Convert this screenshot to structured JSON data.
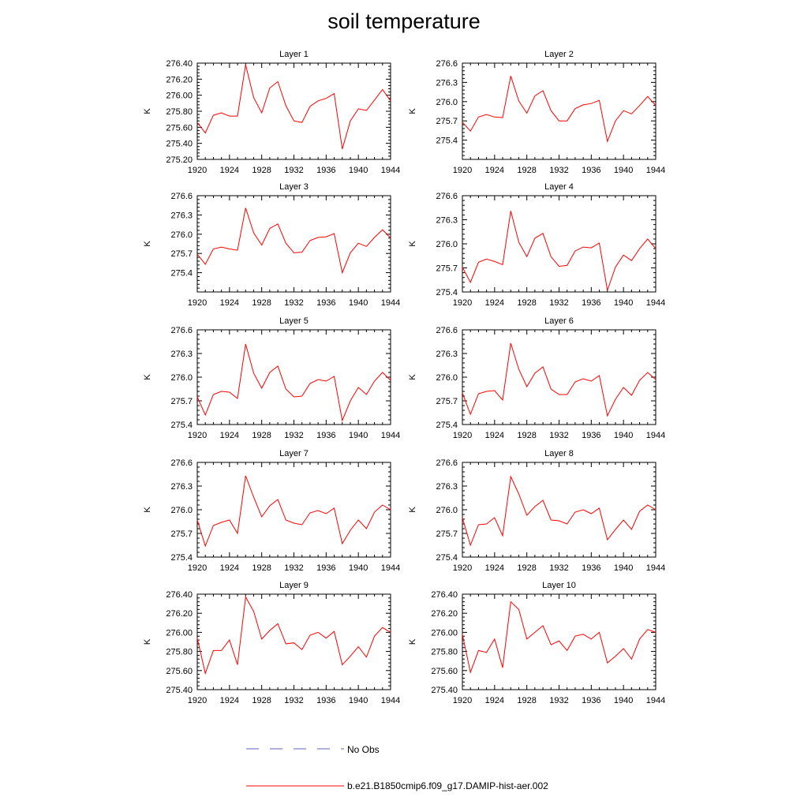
{
  "page": {
    "title": "soil temperature"
  },
  "legend": {
    "items": [
      {
        "label": "No Obs",
        "color": "#6060c0",
        "dash": "dashed"
      },
      {
        "label": "b.e21.B1850cmip6.f09_g17.DAMIP-hist-aer.002",
        "color": "#ff0000",
        "dash": "solid"
      }
    ]
  },
  "chart_data": [
    {
      "type": "line",
      "title": "Layer 1",
      "ylabel": "K",
      "xlim": [
        1920,
        1944
      ],
      "xticks": [
        "1920",
        "1924",
        "1928",
        "1932",
        "1936",
        "1940",
        "1944"
      ],
      "ylim": [
        275.2,
        276.4
      ],
      "yticks": [
        "275.20",
        "275.40",
        "275.60",
        "275.80",
        "276.00",
        "276.20",
        "276.40"
      ],
      "x": [
        1920,
        1921,
        1922,
        1923,
        1924,
        1925,
        1926,
        1927,
        1928,
        1929,
        1930,
        1931,
        1932,
        1933,
        1934,
        1935,
        1936,
        1937,
        1938,
        1939,
        1940,
        1941,
        1942,
        1943,
        1944
      ],
      "series": [
        {
          "color": "#ff0000",
          "values": [
            275.66,
            275.53,
            275.75,
            275.78,
            275.74,
            275.74,
            276.38,
            275.97,
            275.78,
            276.09,
            276.17,
            275.87,
            275.68,
            275.66,
            275.86,
            275.93,
            275.96,
            276.02,
            275.33,
            275.68,
            275.83,
            275.81,
            275.94,
            276.07,
            275.93
          ]
        }
      ]
    },
    {
      "type": "line",
      "title": "Layer 2",
      "ylabel": "K",
      "xlim": [
        1920,
        1944
      ],
      "xticks": [
        "1920",
        "1924",
        "1928",
        "1932",
        "1936",
        "1940",
        "1944"
      ],
      "ylim": [
        275.1,
        276.6
      ],
      "yticks": [
        "275.4",
        "275.7",
        "276.0",
        "276.3",
        "276.6"
      ],
      "x": [
        1920,
        1921,
        1922,
        1923,
        1924,
        1925,
        1926,
        1927,
        1928,
        1929,
        1930,
        1931,
        1932,
        1933,
        1934,
        1935,
        1936,
        1937,
        1938,
        1939,
        1940,
        1941,
        1942,
        1943,
        1944
      ],
      "series": [
        {
          "color": "#ff0000",
          "values": [
            275.68,
            275.54,
            275.76,
            275.8,
            275.76,
            275.75,
            276.4,
            276.01,
            275.82,
            276.09,
            276.17,
            275.86,
            275.7,
            275.7,
            275.89,
            275.95,
            275.97,
            276.02,
            275.38,
            275.7,
            275.86,
            275.81,
            275.94,
            276.08,
            275.94
          ]
        }
      ]
    },
    {
      "type": "line",
      "title": "Layer 3",
      "ylabel": "K",
      "xlim": [
        1920,
        1944
      ],
      "xticks": [
        "1920",
        "1924",
        "1928",
        "1932",
        "1936",
        "1940",
        "1944"
      ],
      "ylim": [
        275.1,
        276.6
      ],
      "yticks": [
        "275.4",
        "275.7",
        "276.0",
        "276.3",
        "276.6"
      ],
      "x": [
        1920,
        1921,
        1922,
        1923,
        1924,
        1925,
        1926,
        1927,
        1928,
        1929,
        1930,
        1931,
        1932,
        1933,
        1934,
        1935,
        1936,
        1937,
        1938,
        1939,
        1940,
        1941,
        1942,
        1943,
        1944
      ],
      "series": [
        {
          "color": "#ff0000",
          "values": [
            275.69,
            275.53,
            275.77,
            275.8,
            275.77,
            275.75,
            276.41,
            276.02,
            275.83,
            276.09,
            276.16,
            275.86,
            275.71,
            275.72,
            275.9,
            275.95,
            275.96,
            276.01,
            275.4,
            275.71,
            275.86,
            275.81,
            275.95,
            276.07,
            275.94
          ]
        }
      ]
    },
    {
      "type": "line",
      "title": "Layer 4",
      "ylabel": "K",
      "xlim": [
        1920,
        1944
      ],
      "xticks": [
        "1920",
        "1924",
        "1928",
        "1932",
        "1936",
        "1940",
        "1944"
      ],
      "ylim": [
        275.4,
        276.6
      ],
      "yticks": [
        "275.4",
        "275.7",
        "276.0",
        "276.3",
        "276.6"
      ],
      "x": [
        1920,
        1921,
        1922,
        1923,
        1924,
        1925,
        1926,
        1927,
        1928,
        1929,
        1930,
        1931,
        1932,
        1933,
        1934,
        1935,
        1936,
        1937,
        1938,
        1939,
        1940,
        1941,
        1942,
        1943,
        1944
      ],
      "series": [
        {
          "color": "#ff0000",
          "values": [
            275.71,
            275.52,
            275.77,
            275.81,
            275.78,
            275.74,
            276.41,
            276.02,
            275.84,
            276.07,
            276.13,
            275.84,
            275.72,
            275.73,
            275.91,
            275.96,
            275.95,
            276.01,
            275.42,
            275.71,
            275.86,
            275.79,
            275.94,
            276.06,
            275.94
          ]
        }
      ]
    },
    {
      "type": "line",
      "title": "Layer 5",
      "ylabel": "K",
      "xlim": [
        1920,
        1944
      ],
      "xticks": [
        "1920",
        "1924",
        "1928",
        "1932",
        "1936",
        "1940",
        "1944"
      ],
      "ylim": [
        275.4,
        276.6
      ],
      "yticks": [
        "275.4",
        "275.7",
        "276.0",
        "276.3",
        "276.6"
      ],
      "x": [
        1920,
        1921,
        1922,
        1923,
        1924,
        1925,
        1926,
        1927,
        1928,
        1929,
        1930,
        1931,
        1932,
        1933,
        1934,
        1935,
        1936,
        1937,
        1938,
        1939,
        1940,
        1941,
        1942,
        1943,
        1944
      ],
      "series": [
        {
          "color": "#ff0000",
          "values": [
            275.75,
            275.52,
            275.78,
            275.82,
            275.81,
            275.73,
            276.42,
            276.05,
            275.86,
            276.06,
            276.14,
            275.85,
            275.75,
            275.76,
            275.92,
            275.97,
            275.95,
            276.01,
            275.45,
            275.7,
            275.87,
            275.78,
            275.95,
            276.06,
            275.96
          ]
        }
      ]
    },
    {
      "type": "line",
      "title": "Layer 6",
      "ylabel": "K",
      "xlim": [
        1920,
        1944
      ],
      "xticks": [
        "1920",
        "1924",
        "1928",
        "1932",
        "1936",
        "1940",
        "1944"
      ],
      "ylim": [
        275.4,
        276.6
      ],
      "yticks": [
        "275.4",
        "275.7",
        "276.0",
        "276.3",
        "276.6"
      ],
      "x": [
        1920,
        1921,
        1922,
        1923,
        1924,
        1925,
        1926,
        1927,
        1928,
        1929,
        1930,
        1931,
        1932,
        1933,
        1934,
        1935,
        1936,
        1937,
        1938,
        1939,
        1940,
        1941,
        1942,
        1943,
        1944
      ],
      "series": [
        {
          "color": "#ff0000",
          "values": [
            275.8,
            275.53,
            275.79,
            275.82,
            275.83,
            275.71,
            276.43,
            276.1,
            275.88,
            276.05,
            276.13,
            275.85,
            275.78,
            275.78,
            275.94,
            275.98,
            275.95,
            276.02,
            275.51,
            275.72,
            275.87,
            275.77,
            275.96,
            276.06,
            275.97
          ]
        }
      ]
    },
    {
      "type": "line",
      "title": "Layer 7",
      "ylabel": "K",
      "xlim": [
        1920,
        1944
      ],
      "xticks": [
        "1920",
        "1924",
        "1928",
        "1932",
        "1936",
        "1940",
        "1944"
      ],
      "ylim": [
        275.4,
        276.6
      ],
      "yticks": [
        "275.4",
        "275.7",
        "276.0",
        "276.3",
        "276.6"
      ],
      "x": [
        1920,
        1921,
        1922,
        1923,
        1924,
        1925,
        1926,
        1927,
        1928,
        1929,
        1930,
        1931,
        1932,
        1933,
        1934,
        1935,
        1936,
        1937,
        1938,
        1939,
        1940,
        1941,
        1942,
        1943,
        1944
      ],
      "series": [
        {
          "color": "#ff0000",
          "values": [
            275.87,
            275.54,
            275.8,
            275.84,
            275.87,
            275.7,
            276.43,
            276.16,
            275.91,
            276.05,
            276.13,
            275.87,
            275.83,
            275.81,
            275.96,
            275.99,
            275.95,
            276.02,
            275.57,
            275.74,
            275.87,
            275.76,
            275.97,
            276.06,
            276.0
          ]
        }
      ]
    },
    {
      "type": "line",
      "title": "Layer 8",
      "ylabel": "K",
      "xlim": [
        1920,
        1944
      ],
      "xticks": [
        "1920",
        "1924",
        "1928",
        "1932",
        "1936",
        "1940",
        "1944"
      ],
      "ylim": [
        275.4,
        276.6
      ],
      "yticks": [
        "275.4",
        "275.7",
        "276.0",
        "276.3",
        "276.6"
      ],
      "x": [
        1920,
        1921,
        1922,
        1923,
        1924,
        1925,
        1926,
        1927,
        1928,
        1929,
        1930,
        1931,
        1932,
        1933,
        1934,
        1935,
        1936,
        1937,
        1938,
        1939,
        1940,
        1941,
        1942,
        1943,
        1944
      ],
      "series": [
        {
          "color": "#ff0000",
          "values": [
            275.9,
            275.55,
            275.81,
            275.82,
            275.9,
            275.67,
            276.42,
            276.2,
            275.93,
            276.04,
            276.12,
            275.87,
            275.86,
            275.82,
            275.97,
            276.0,
            275.95,
            276.02,
            275.62,
            275.75,
            275.87,
            275.75,
            275.98,
            276.06,
            276.0
          ]
        }
      ]
    },
    {
      "type": "line",
      "title": "Layer 9",
      "ylabel": "K",
      "xlim": [
        1920,
        1944
      ],
      "xticks": [
        "1920",
        "1924",
        "1928",
        "1932",
        "1936",
        "1940",
        "1944"
      ],
      "ylim": [
        275.4,
        276.4
      ],
      "yticks": [
        "275.40",
        "275.60",
        "275.80",
        "276.00",
        "276.20",
        "276.40"
      ],
      "x": [
        1920,
        1921,
        1922,
        1923,
        1924,
        1925,
        1926,
        1927,
        1928,
        1929,
        1930,
        1931,
        1932,
        1933,
        1934,
        1935,
        1936,
        1937,
        1938,
        1939,
        1940,
        1941,
        1942,
        1943,
        1944
      ],
      "series": [
        {
          "color": "#ff0000",
          "values": [
            275.94,
            275.57,
            275.81,
            275.81,
            275.92,
            275.66,
            276.37,
            276.22,
            275.93,
            276.02,
            276.09,
            275.88,
            275.89,
            275.82,
            275.97,
            276.0,
            275.94,
            276.01,
            275.66,
            275.75,
            275.85,
            275.74,
            275.96,
            276.05,
            276.0
          ]
        }
      ]
    },
    {
      "type": "line",
      "title": "Layer 10",
      "ylabel": "K",
      "xlim": [
        1920,
        1944
      ],
      "xticks": [
        "1920",
        "1924",
        "1928",
        "1932",
        "1936",
        "1940",
        "1944"
      ],
      "ylim": [
        275.4,
        276.4
      ],
      "yticks": [
        "275.40",
        "275.60",
        "275.80",
        "276.00",
        "276.20",
        "276.40"
      ],
      "x": [
        1920,
        1921,
        1922,
        1923,
        1924,
        1925,
        1926,
        1927,
        1928,
        1929,
        1930,
        1931,
        1932,
        1933,
        1934,
        1935,
        1936,
        1937,
        1938,
        1939,
        1940,
        1941,
        1942,
        1943,
        1944
      ],
      "series": [
        {
          "color": "#ff0000",
          "values": [
            275.98,
            275.58,
            275.81,
            275.79,
            275.93,
            275.63,
            276.32,
            276.24,
            275.93,
            276.0,
            276.07,
            275.87,
            275.91,
            275.81,
            275.96,
            275.98,
            275.93,
            276.0,
            275.68,
            275.75,
            275.83,
            275.72,
            275.93,
            276.03,
            276.0
          ]
        }
      ]
    }
  ]
}
